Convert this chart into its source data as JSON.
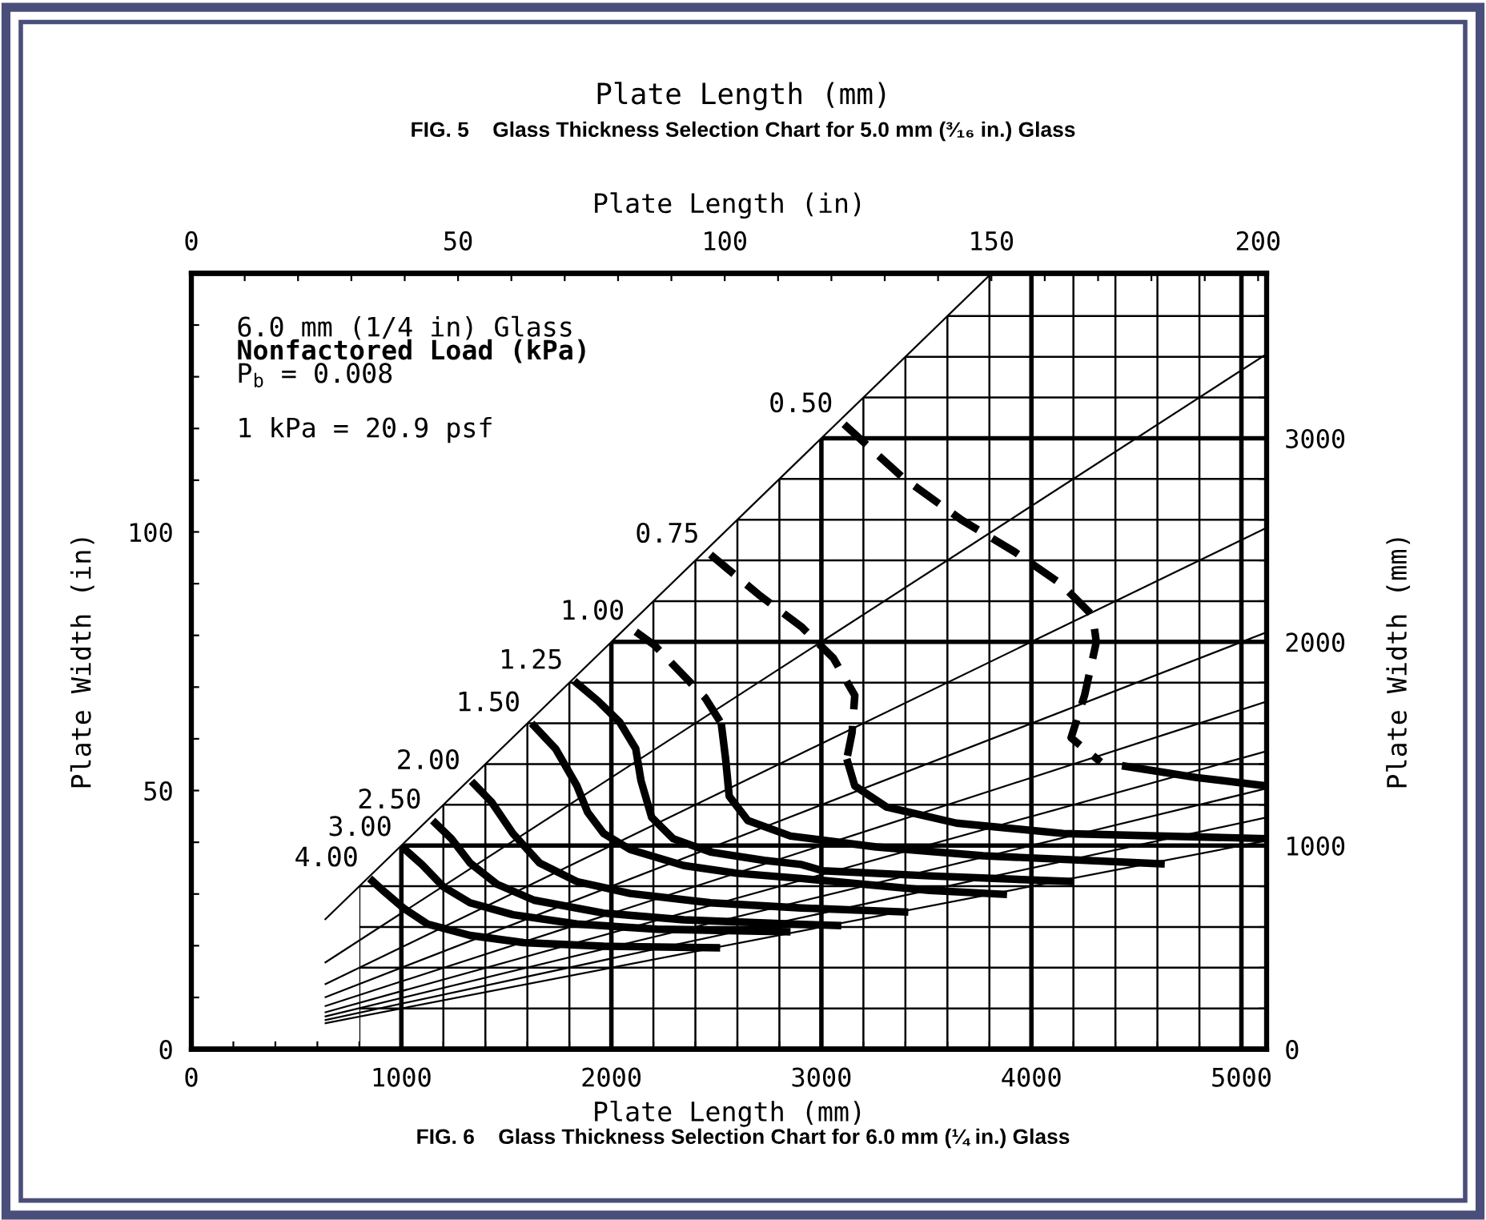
{
  "chart_data": {
    "type": "line",
    "title": "FIG. 6    Glass Thickness Selection Chart for 6.0 mm (¼ in.) Glass",
    "xlabel": "Plate Length (mm)",
    "x2label": "Plate Length (in)",
    "ylabel": "Plate Width (in)",
    "y2label": "Plate Width (mm)",
    "annotations": [
      "6.0 mm (1/4 in) Glass",
      "Nonfactored Load (kPa)",
      "P$_{b}$ = 0.008",
      "1 kPa = 20.9 psf",
      "Plate Length (mm)",
      "FIG. 5    Glass Thickness Selection Chart for 5.0 mm (³⁄₁₆ in.) Glass"
    ],
    "xlim": [
      0,
      5120
    ],
    "ylim": [
      0,
      150
    ],
    "x2lim": [
      0,
      201.6
    ],
    "y2lim": [
      0,
      3810
    ],
    "xticks": [
      0,
      {
        "value": 200,
        "label": null
      },
      {
        "value": 400,
        "label": null
      },
      {
        "value": 600,
        "label": null
      },
      {
        "value": 800,
        "label": null
      },
      1000,
      {
        "value": 1200,
        "label": null
      },
      {
        "value": 1400,
        "label": null
      },
      {
        "value": 1600,
        "label": null
      },
      {
        "value": 1800,
        "label": null
      },
      2000,
      {
        "value": 2200,
        "label": null
      },
      {
        "value": 2400,
        "label": null
      },
      {
        "value": 2600,
        "label": null
      },
      {
        "value": 2800,
        "label": null
      },
      3000,
      {
        "value": 3200,
        "label": null
      },
      {
        "value": 3400,
        "label": null
      },
      {
        "value": 3600,
        "label": null
      },
      {
        "value": 3800,
        "label": null
      },
      4000,
      {
        "value": 4200,
        "label": null
      },
      {
        "value": 4400,
        "label": null
      },
      {
        "value": 4600,
        "label": null
      },
      {
        "value": 4800,
        "label": null
      },
      5000
    ],
    "x2ticks": [
      0,
      {
        "value": 10,
        "label": null
      },
      {
        "value": 20,
        "label": null
      },
      {
        "value": 30,
        "label": null
      },
      {
        "value": 40,
        "label": null
      },
      50,
      {
        "value": 60,
        "label": null
      },
      {
        "value": 70,
        "label": null
      },
      {
        "value": 80,
        "label": null
      },
      {
        "value": 90,
        "label": null
      },
      100,
      {
        "value": 110,
        "label": null
      },
      {
        "value": 120,
        "label": null
      },
      {
        "value": 130,
        "label": null
      },
      {
        "value": 140,
        "label": null
      },
      150,
      {
        "value": 160,
        "label": null
      },
      {
        "value": 170,
        "label": null
      },
      {
        "value": 180,
        "label": null
      },
      {
        "value": 190,
        "label": null
      },
      200
    ],
    "yticks": [
      0,
      {
        "value": 10,
        "label": null
      },
      {
        "value": 20,
        "label": null
      },
      {
        "value": 30,
        "label": null
      },
      {
        "value": 40,
        "label": null
      },
      50,
      {
        "value": 60,
        "label": null
      },
      {
        "value": 70,
        "label": null
      },
      {
        "value": 80,
        "label": null
      },
      {
        "value": 90,
        "label": null
      },
      100,
      {
        "value": 110,
        "label": null
      },
      {
        "value": 120,
        "label": null
      },
      {
        "value": 130,
        "label": null
      },
      {
        "value": 140,
        "label": null
      }
    ],
    "y2ticks": [
      0,
      {
        "value": 200,
        "label": null
      },
      {
        "value": 400,
        "label": null
      },
      {
        "value": 600,
        "label": null
      },
      {
        "value": 800,
        "label": null
      },
      1000,
      {
        "value": 1200,
        "label": null
      },
      {
        "value": 1400,
        "label": null
      },
      {
        "value": 1600,
        "label": null
      },
      {
        "value": 1800,
        "label": null
      },
      2000,
      {
        "value": 2200,
        "label": null
      },
      {
        "value": 2400,
        "label": null
      },
      {
        "value": 2600,
        "label": null
      },
      {
        "value": 2800,
        "label": null
      },
      3000,
      {
        "value": 3200,
        "label": null
      },
      {
        "value": 3400,
        "label": null
      },
      {
        "value": 3600,
        "label": null
      }
    ],
    "grid": true,
    "marker": "none",
    "series": [
      {
        "color": "#000000",
        "line_style": "solid",
        "x": [
          635,
          3810
        ],
        "values": [
          25.0,
          150.0
        ]
      },
      {
        "color": "#000000",
        "line_style": "solid",
        "x": [
          635,
          5120
        ],
        "values": [
          16.7,
          134.4
        ]
      },
      {
        "color": "#000000",
        "line_style": "solid",
        "x": [
          635,
          5120
        ],
        "values": [
          12.5,
          100.8
        ]
      },
      {
        "color": "#000000",
        "line_style": "solid",
        "x": [
          635,
          5120
        ],
        "values": [
          10.0,
          80.6
        ]
      },
      {
        "color": "#000000",
        "line_style": "solid",
        "x": [
          635,
          5120
        ],
        "values": [
          8.3,
          67.2
        ]
      },
      {
        "color": "#000000",
        "line_style": "solid",
        "x": [
          635,
          5120
        ],
        "values": [
          7.1,
          57.6
        ]
      },
      {
        "color": "#000000",
        "line_style": "solid",
        "x": [
          635,
          5120
        ],
        "values": [
          6.3,
          50.4
        ]
      },
      {
        "color": "#000000",
        "line_style": "solid",
        "x": [
          635,
          5120
        ],
        "values": [
          5.6,
          44.8
        ]
      },
      {
        "color": "#000000",
        "line_style": "solid",
        "x": [
          635,
          5120
        ],
        "values": [
          5.0,
          40.3
        ]
      },
      {
        "name": "0.50",
        "color": "#000000",
        "line_style": "dashed",
        "x": [
          3108,
          3388,
          3668,
          3922,
          4139,
          4292,
          4309,
          4253,
          4189,
          4330
        ],
        "values": [
          120.8,
          110.5,
          102.3,
          96.1,
          90.0,
          83.8,
          78.7,
          68.4,
          60.2,
          55.5
        ]
      },
      {
        "color": "#000000",
        "line_style": "solid",
        "x": [
          4431,
          4788,
          5120
        ],
        "values": [
          54.8,
          52.5,
          50.9
        ]
      },
      {
        "name": "0.75",
        "color": "#000000",
        "line_style": "dashed",
        "x": [
          2472,
          2701,
          2904,
          3057,
          3159,
          3146,
          3121
        ],
        "values": [
          95.6,
          87.9,
          81.7,
          75.6,
          68.4,
          61.2,
          56.1
        ]
      },
      {
        "color": "#000000",
        "line_style": "solid",
        "x": [
          3121,
          3159,
          3311,
          3643,
          4151,
          5120
        ],
        "values": [
          56.1,
          50.9,
          46.8,
          43.7,
          41.7,
          40.7
        ]
      },
      {
        "name": "1.00",
        "color": "#000000",
        "line_style": "dashed",
        "x": [
          2116,
          2205,
          2447,
          2523
        ],
        "values": [
          80.7,
          78.1,
          67.9,
          63.0
        ]
      },
      {
        "color": "#000000",
        "line_style": "solid",
        "x": [
          2523,
          2544,
          2561,
          2650,
          2853,
          3261,
          3770,
          4635
        ],
        "values": [
          63.0,
          56.1,
          48.9,
          44.2,
          41.2,
          39.1,
          37.4,
          35.8
        ]
      },
      {
        "name": "1.25",
        "color": "#000000",
        "line_style": "solid",
        "x": [
          1823,
          1937,
          2040,
          2116,
          2141,
          2192,
          2294,
          2472,
          2727,
          2905,
          3006,
          3515,
          4202
        ],
        "values": [
          71.2,
          67.3,
          63.2,
          58.1,
          51.9,
          44.8,
          40.7,
          38.1,
          36.5,
          35.7,
          34.5,
          33.5,
          32.4
        ]
      },
      {
        "name": "1.50",
        "color": "#000000",
        "line_style": "solid",
        "x": [
          1620,
          1734,
          1836,
          1887,
          1963,
          2090,
          2345,
          2599,
          2905,
          3515,
          3884
        ],
        "values": [
          63.0,
          58.1,
          50.9,
          45.8,
          41.7,
          38.6,
          35.5,
          34.0,
          33.0,
          30.7,
          29.9
        ]
      },
      {
        "name": "2.00",
        "color": "#000000",
        "line_style": "solid",
        "x": [
          1334,
          1429,
          1531,
          1658,
          1836,
          2090,
          2472,
          2905,
          3414
        ],
        "values": [
          51.8,
          47.8,
          41.7,
          36.0,
          32.4,
          30.1,
          28.3,
          27.3,
          26.5
        ]
      },
      {
        "name": "2.50",
        "color": "#000000",
        "line_style": "solid",
        "x": [
          1149,
          1238,
          1327,
          1455,
          1632,
          1963,
          2345,
          2853,
          3095
        ],
        "values": [
          44.2,
          40.7,
          36.0,
          31.9,
          28.8,
          26.3,
          25.0,
          24.2,
          23.9
        ]
      },
      {
        "name": "3.00",
        "color": "#000000",
        "line_style": "solid",
        "x": [
          1009,
          1098,
          1200,
          1327,
          1531,
          1836,
          2218,
          2853
        ],
        "values": [
          38.9,
          35.7,
          31.4,
          28.3,
          26.0,
          24.2,
          23.2,
          22.7
        ]
      },
      {
        "name": "4.00",
        "color": "#000000",
        "line_style": "solid",
        "x": [
          849,
          920,
          1009,
          1124,
          1327,
          1582,
          1963,
          2518
        ],
        "values": [
          33.0,
          30.4,
          27.3,
          24.2,
          22.0,
          20.6,
          19.9,
          19.6
        ]
      }
    ]
  }
}
